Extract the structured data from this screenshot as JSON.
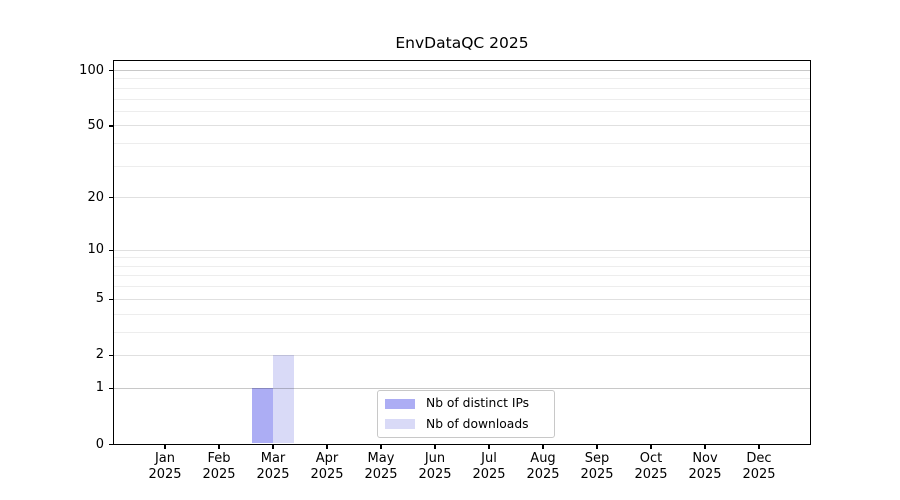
{
  "chart_data": {
    "type": "bar",
    "title": "EnvDataQC 2025",
    "xlabel": "",
    "ylabel": "",
    "yscale": "log1p",
    "ylim": [
      0,
      100
    ],
    "grid": "on",
    "legend_position": "lower center",
    "y_major_ticks": [
      0,
      1,
      2,
      5,
      10,
      20,
      50,
      100
    ],
    "y_minor_gridlines": [
      3,
      4,
      6,
      7,
      8,
      9,
      30,
      40,
      60,
      70,
      80,
      90
    ],
    "categories": [
      {
        "month": "Jan",
        "year": "2025"
      },
      {
        "month": "Feb",
        "year": "2025"
      },
      {
        "month": "Mar",
        "year": "2025"
      },
      {
        "month": "Apr",
        "year": "2025"
      },
      {
        "month": "May",
        "year": "2025"
      },
      {
        "month": "Jun",
        "year": "2025"
      },
      {
        "month": "Jul",
        "year": "2025"
      },
      {
        "month": "Aug",
        "year": "2025"
      },
      {
        "month": "Sep",
        "year": "2025"
      },
      {
        "month": "Oct",
        "year": "2025"
      },
      {
        "month": "Nov",
        "year": "2025"
      },
      {
        "month": "Dec",
        "year": "2025"
      }
    ],
    "series": [
      {
        "name": "Nb of distinct IPs",
        "color": "#acadf4",
        "values": [
          0,
          0,
          1,
          0,
          0,
          0,
          0,
          0,
          0,
          0,
          0,
          0
        ]
      },
      {
        "name": "Nb of downloads",
        "color": "#d9daf7",
        "values": [
          0,
          0,
          2,
          0,
          0,
          0,
          0,
          0,
          0,
          0,
          0,
          0
        ]
      }
    ]
  },
  "colors": {
    "background": "#ffffff",
    "spine": "#000000",
    "tick": "#000000",
    "text": "#000000",
    "grid_major_strong": "rgba(0,0,0,0.215)",
    "grid_major": "rgba(0,0,0,0.12)",
    "grid_minor": "rgba(0,0,0,0.07)",
    "legend_border": "#c8c8c8",
    "legend_background": "#ffffff"
  }
}
